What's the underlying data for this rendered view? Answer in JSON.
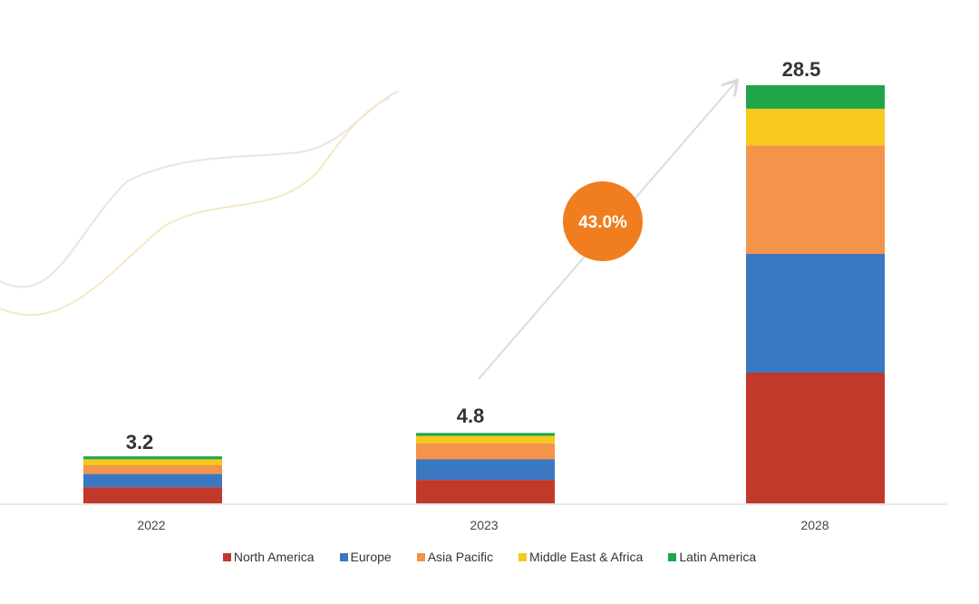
{
  "chart_data": {
    "type": "bar",
    "stacked": true,
    "categories": [
      "2022",
      "2023",
      "2028"
    ],
    "totals": [
      "3.2",
      "4.8",
      "28.5"
    ],
    "series": [
      {
        "name": "North America",
        "color": "#c0392b",
        "values": [
          1.1,
          1.6,
          8.9
        ]
      },
      {
        "name": "Europe",
        "color": "#3a78c2",
        "values": [
          0.9,
          1.4,
          8.1
        ]
      },
      {
        "name": "Asia Pacific",
        "color": "#f4934a",
        "values": [
          0.6,
          1.1,
          7.4
        ]
      },
      {
        "name": "Middle East & Africa",
        "color": "#f7c81e",
        "values": [
          0.4,
          0.5,
          2.5
        ]
      },
      {
        "name": "Latin America",
        "color": "#1fa64a",
        "values": [
          0.2,
          0.2,
          1.6
        ]
      }
    ],
    "annotation": {
      "cagr_label": "43.0%",
      "badge_color": "#f07d1e"
    },
    "grid": false,
    "legend_position": "bottom",
    "ylim": [
      0,
      30
    ]
  }
}
